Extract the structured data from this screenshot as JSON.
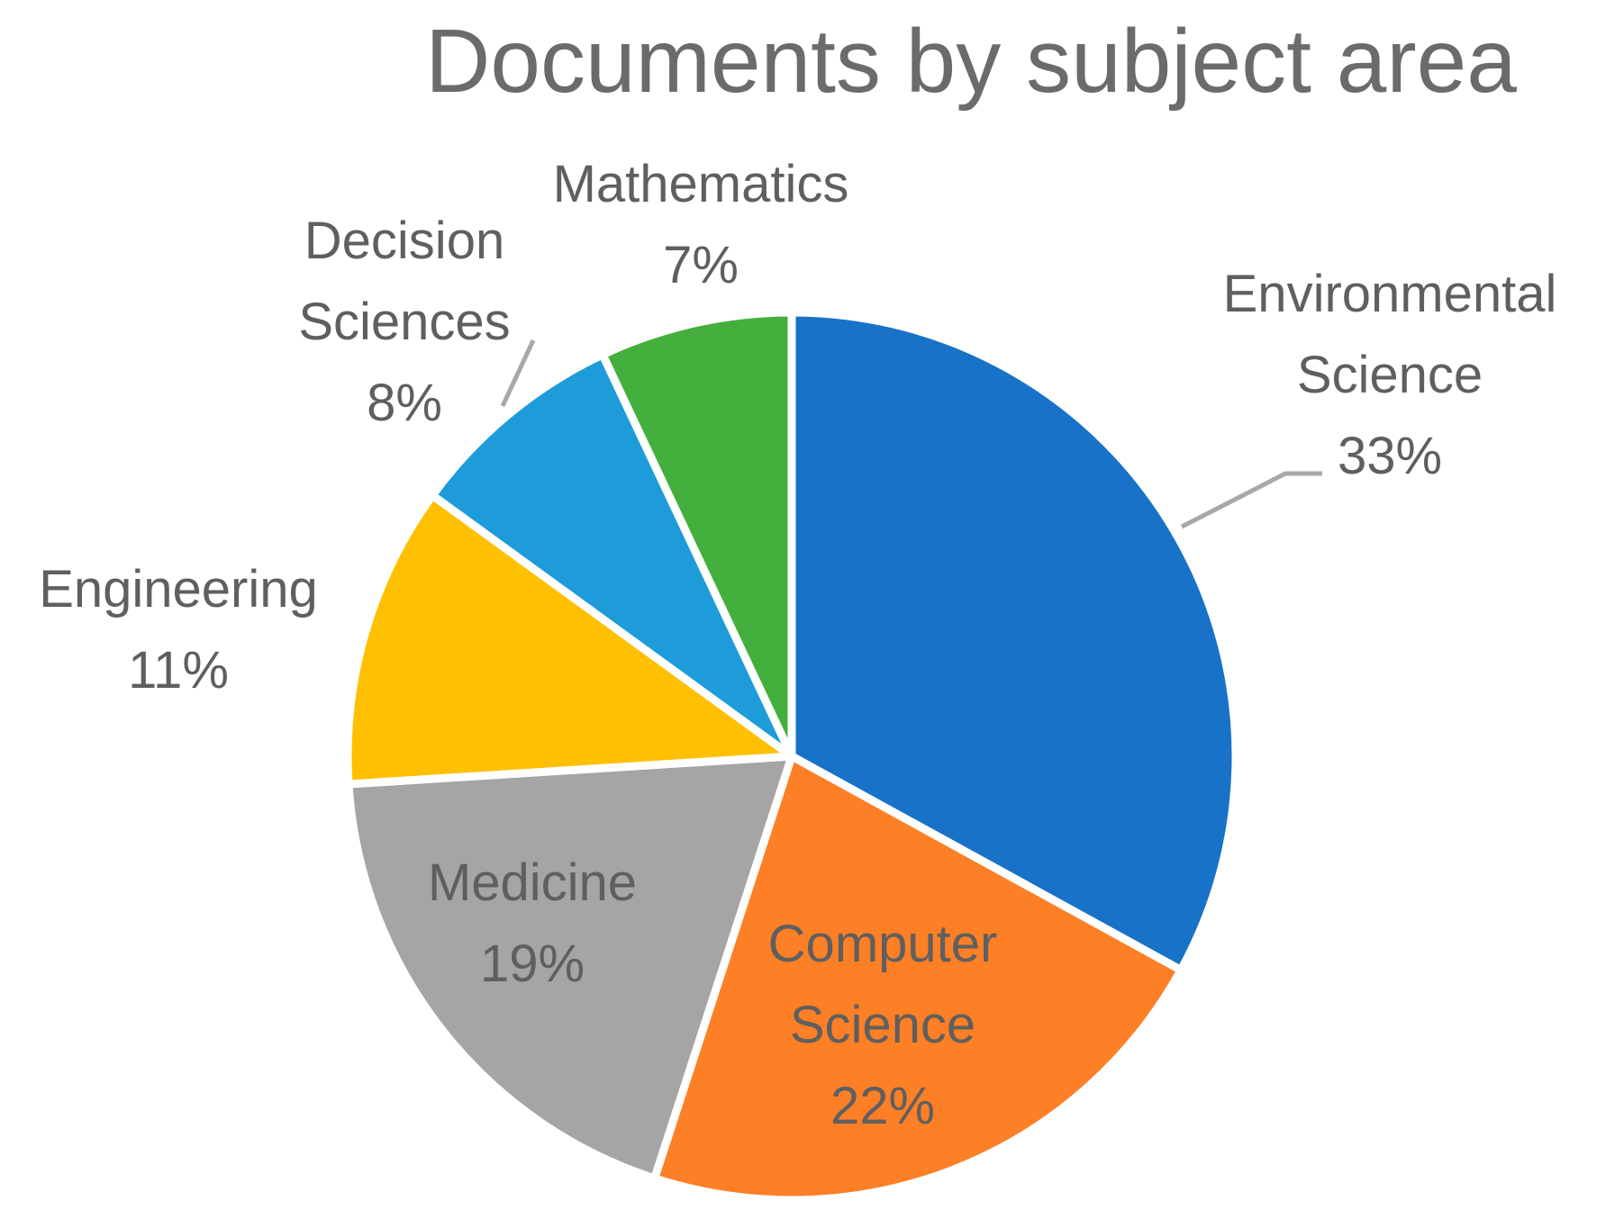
{
  "chart_data": {
    "type": "pie",
    "title": "Documents by subject area",
    "unit": "%",
    "start_angle_deg": 0,
    "direction": "clockwise",
    "slices": [
      {
        "name": "Environmental Science",
        "label_lines": [
          "Environmental",
          "Science"
        ],
        "value": 33,
        "label": "33%",
        "color": "#1872C8"
      },
      {
        "name": "Computer Science",
        "label_lines": [
          "Computer",
          "Science"
        ],
        "value": 22,
        "label": "22%",
        "color": "#FD7F26"
      },
      {
        "name": "Medicine",
        "label_lines": [
          "Medicine"
        ],
        "value": 19,
        "label": "19%",
        "color": "#A5A5A5"
      },
      {
        "name": "Engineering",
        "label_lines": [
          "Engineering"
        ],
        "value": 11,
        "label": "11%",
        "color": "#FEC000"
      },
      {
        "name": "Decision Sciences",
        "label_lines": [
          "Decision",
          "Sciences"
        ],
        "value": 8,
        "label": "8%",
        "color": "#1D9CD9"
      },
      {
        "name": "Mathematics",
        "label_lines": [
          "Mathematics"
        ],
        "value": 7,
        "label": "7%",
        "color": "#44AF3D"
      }
    ]
  }
}
